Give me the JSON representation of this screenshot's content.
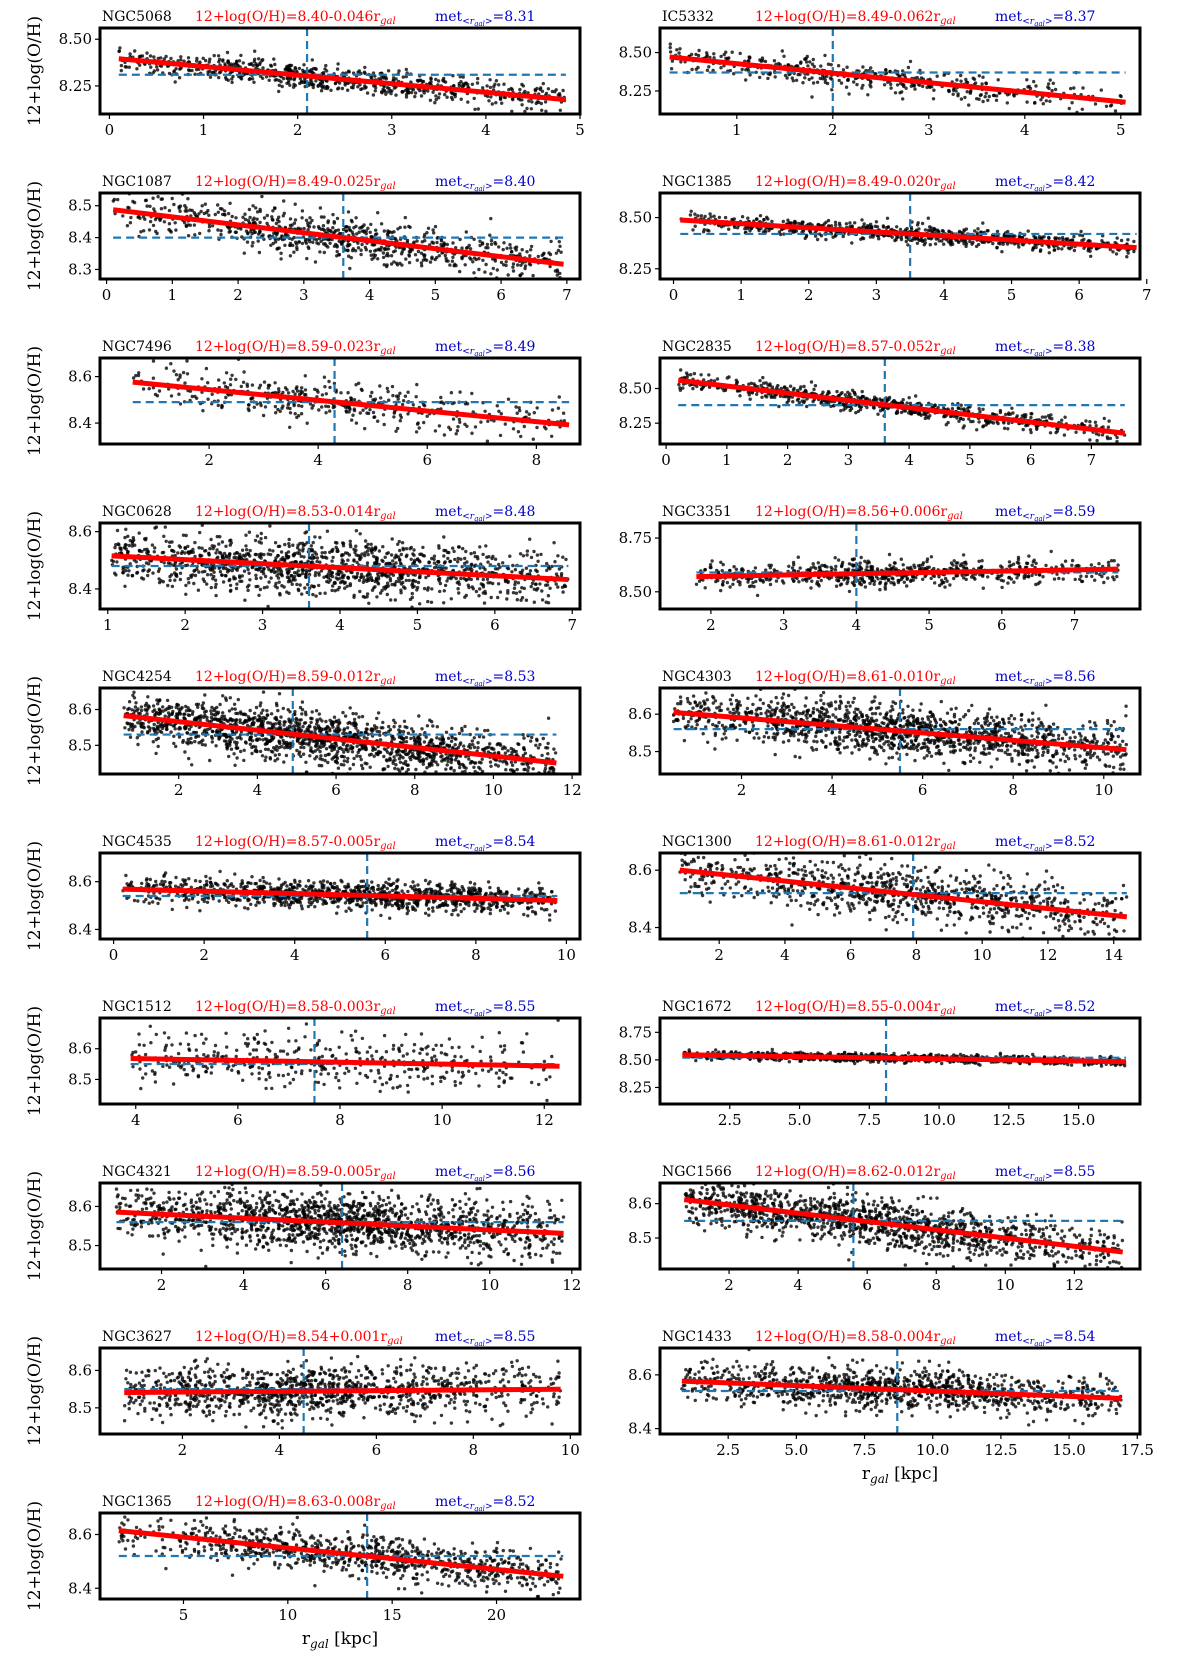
{
  "figure": {
    "ylabel": "12+log(O/H)",
    "xlabel_prefix": "r",
    "xlabel_sub": "gal",
    "xlabel_suffix": " [kpc]",
    "colors": {
      "points": "#000000",
      "fit": "#ff0000",
      "median": "#1f77b4",
      "fit_label": "#ff0000",
      "met_label": "#0000cc",
      "frame": "#000000"
    }
  },
  "chart_data": [
    {
      "type": "scatter",
      "name": "NGC5068",
      "fit_text": "12+log(O/H)=8.40-0.046r",
      "met_value": "=8.31",
      "intercept": 8.4,
      "slope": -0.046,
      "met": 8.31,
      "r_med": 2.1,
      "xlim": [
        -0.1,
        5.0
      ],
      "ylim": [
        8.1,
        8.56
      ],
      "xticks": [
        0,
        1,
        2,
        3,
        4,
        5
      ],
      "yticks": [
        8.25,
        8.5
      ],
      "ytick_labels": [
        "8.25",
        "8.50"
      ],
      "x_range": [
        0.1,
        4.85
      ],
      "n_points": 750,
      "scatter": 0.035,
      "show_xlabel": false,
      "show_ylabel": true
    },
    {
      "type": "scatter",
      "name": "IC5332",
      "fit_text": "12+log(O/H)=8.49-0.062r",
      "met_value": "=8.37",
      "intercept": 8.49,
      "slope": -0.062,
      "met": 8.37,
      "r_med": 2.0,
      "xlim": [
        0.2,
        5.2
      ],
      "ylim": [
        8.1,
        8.66
      ],
      "xticks": [
        1,
        2,
        3,
        4,
        5
      ],
      "yticks": [
        8.25,
        8.5
      ],
      "ytick_labels": [
        "8.25",
        "8.50"
      ],
      "x_range": [
        0.3,
        5.05
      ],
      "n_points": 450,
      "scatter": 0.045,
      "show_xlabel": false,
      "show_ylabel": false
    },
    {
      "type": "scatter",
      "name": "NGC1087",
      "fit_text": "12+log(O/H)=8.49-0.025r",
      "met_value": "=8.40",
      "intercept": 8.49,
      "slope": -0.025,
      "met": 8.4,
      "r_med": 3.6,
      "xlim": [
        -0.1,
        7.2
      ],
      "ylim": [
        8.27,
        8.54
      ],
      "xticks": [
        0,
        1,
        2,
        3,
        4,
        5,
        6,
        7
      ],
      "yticks": [
        8.3,
        8.4,
        8.5
      ],
      "ytick_labels": [
        "8.3",
        "8.4",
        "8.5"
      ],
      "x_range": [
        0.1,
        6.95
      ],
      "n_points": 800,
      "scatter": 0.035,
      "show_xlabel": false,
      "show_ylabel": true
    },
    {
      "type": "scatter",
      "name": "NGC1385",
      "fit_text": "12+log(O/H)=8.49-0.020r",
      "met_value": "=8.42",
      "intercept": 8.49,
      "slope": -0.02,
      "met": 8.42,
      "r_med": 3.5,
      "xlim": [
        -0.2,
        6.9
      ],
      "ylim": [
        8.2,
        8.62
      ],
      "xticks": [
        0,
        1,
        2,
        3,
        4,
        5,
        6,
        7
      ],
      "yticks": [
        8.25,
        8.5
      ],
      "ytick_labels": [
        "8.25",
        "8.50"
      ],
      "x_range": [
        0.1,
        6.85
      ],
      "n_points": 800,
      "scatter": 0.022,
      "show_xlabel": false,
      "show_ylabel": false
    },
    {
      "type": "scatter",
      "name": "NGC7496",
      "fit_text": "12+log(O/H)=8.59-0.023r",
      "met_value": "=8.49",
      "intercept": 8.59,
      "slope": -0.023,
      "met": 8.49,
      "r_med": 4.3,
      "xlim": [
        0.0,
        8.8
      ],
      "ylim": [
        8.31,
        8.68
      ],
      "xticks": [
        2,
        4,
        6,
        8
      ],
      "yticks": [
        8.4,
        8.6
      ],
      "ytick_labels": [
        "8.4",
        "8.6"
      ],
      "x_range": [
        0.6,
        8.6
      ],
      "n_points": 420,
      "scatter": 0.045,
      "show_xlabel": false,
      "show_ylabel": true
    },
    {
      "type": "scatter",
      "name": "NGC2835",
      "fit_text": "12+log(O/H)=8.57-0.052r",
      "met_value": "=8.38",
      "intercept": 8.57,
      "slope": -0.052,
      "met": 8.38,
      "r_med": 3.6,
      "xlim": [
        -0.1,
        7.8
      ],
      "ylim": [
        8.1,
        8.72
      ],
      "xticks": [
        0,
        1,
        2,
        3,
        4,
        5,
        6,
        7
      ],
      "yticks": [
        8.25,
        8.5
      ],
      "ytick_labels": [
        "8.25",
        "8.50"
      ],
      "x_range": [
        0.2,
        7.55
      ],
      "n_points": 700,
      "scatter": 0.035,
      "show_xlabel": false,
      "show_ylabel": false
    },
    {
      "type": "scatter",
      "name": "NGC0628",
      "fit_text": "12+log(O/H)=8.53-0.014r",
      "met_value": "=8.48",
      "intercept": 8.53,
      "slope": -0.014,
      "met": 8.48,
      "r_med": 3.6,
      "xlim": [
        0.9,
        7.1
      ],
      "ylim": [
        8.33,
        8.63
      ],
      "xticks": [
        1,
        2,
        3,
        4,
        5,
        6,
        7
      ],
      "yticks": [
        8.4,
        8.6
      ],
      "ytick_labels": [
        "8.4",
        "8.6"
      ],
      "x_range": [
        1.05,
        6.95
      ],
      "n_points": 1300,
      "scatter": 0.05,
      "show_xlabel": false,
      "show_ylabel": true
    },
    {
      "type": "scatter",
      "name": "NGC3351",
      "fit_text": "12+log(O/H)=8.56+0.006r",
      "met_value": "=8.59",
      "intercept": 8.56,
      "slope": 0.006,
      "met": 8.59,
      "r_med": 4.0,
      "xlim": [
        1.3,
        7.9
      ],
      "ylim": [
        8.42,
        8.82
      ],
      "xticks": [
        2,
        3,
        4,
        5,
        6,
        7
      ],
      "yticks": [
        8.5,
        8.75
      ],
      "ytick_labels": [
        "8.50",
        "8.75"
      ],
      "x_range": [
        1.8,
        7.6
      ],
      "n_points": 650,
      "scatter": 0.03,
      "show_xlabel": false,
      "show_ylabel": false
    },
    {
      "type": "scatter",
      "name": "NGC4254",
      "fit_text": "12+log(O/H)=8.59-0.012r",
      "met_value": "=8.53",
      "intercept": 8.59,
      "slope": -0.012,
      "met": 8.53,
      "r_med": 4.9,
      "xlim": [
        0.0,
        12.2
      ],
      "ylim": [
        8.42,
        8.66
      ],
      "xticks": [
        2,
        4,
        6,
        8,
        10,
        12
      ],
      "yticks": [
        8.5,
        8.6
      ],
      "ytick_labels": [
        "8.5",
        "8.6"
      ],
      "x_range": [
        0.6,
        11.6
      ],
      "n_points": 1600,
      "scatter": 0.035,
      "show_xlabel": false,
      "show_ylabel": true
    },
    {
      "type": "scatter",
      "name": "NGC4303",
      "fit_text": "12+log(O/H)=8.61-0.010r",
      "met_value": "=8.56",
      "intercept": 8.61,
      "slope": -0.01,
      "met": 8.56,
      "r_med": 5.5,
      "xlim": [
        0.2,
        10.8
      ],
      "ylim": [
        8.44,
        8.67
      ],
      "xticks": [
        2,
        4,
        6,
        8,
        10
      ],
      "yticks": [
        8.5,
        8.6
      ],
      "ytick_labels": [
        "8.5",
        "8.6"
      ],
      "x_range": [
        0.5,
        10.5
      ],
      "n_points": 1400,
      "scatter": 0.035,
      "show_xlabel": false,
      "show_ylabel": false
    },
    {
      "type": "scatter",
      "name": "NGC4535",
      "fit_text": "12+log(O/H)=8.57-0.005r",
      "met_value": "=8.54",
      "intercept": 8.57,
      "slope": -0.005,
      "met": 8.54,
      "r_med": 5.6,
      "xlim": [
        -0.3,
        10.3
      ],
      "ylim": [
        8.36,
        8.72
      ],
      "xticks": [
        0,
        2,
        4,
        6,
        8,
        10
      ],
      "yticks": [
        8.4,
        8.6
      ],
      "ytick_labels": [
        "8.4",
        "8.6"
      ],
      "x_range": [
        0.2,
        9.8
      ],
      "n_points": 1100,
      "scatter": 0.03,
      "show_xlabel": false,
      "show_ylabel": true
    },
    {
      "type": "scatter",
      "name": "NGC1300",
      "fit_text": "12+log(O/H)=8.61-0.012r",
      "met_value": "=8.52",
      "intercept": 8.61,
      "slope": -0.012,
      "met": 8.52,
      "r_med": 7.9,
      "xlim": [
        0.2,
        14.8
      ],
      "ylim": [
        8.36,
        8.66
      ],
      "xticks": [
        2,
        4,
        6,
        8,
        10,
        12,
        14
      ],
      "yticks": [
        8.4,
        8.6
      ],
      "ytick_labels": [
        "8.4",
        "8.6"
      ],
      "x_range": [
        0.8,
        14.4
      ],
      "n_points": 900,
      "scatter": 0.045,
      "show_xlabel": false,
      "show_ylabel": false
    },
    {
      "type": "scatter",
      "name": "NGC1512",
      "fit_text": "12+log(O/H)=8.58-0.003r",
      "met_value": "=8.55",
      "intercept": 8.58,
      "slope": -0.003,
      "met": 8.55,
      "r_med": 7.5,
      "xlim": [
        3.3,
        12.7
      ],
      "ylim": [
        8.42,
        8.7
      ],
      "xticks": [
        4,
        6,
        8,
        10,
        12
      ],
      "yticks": [
        8.5,
        8.6
      ],
      "ytick_labels": [
        "8.5",
        "8.6"
      ],
      "x_range": [
        3.9,
        12.3
      ],
      "n_points": 420,
      "scatter": 0.045,
      "show_xlabel": false,
      "show_ylabel": true
    },
    {
      "type": "scatter",
      "name": "NGC1672",
      "fit_text": "12+log(O/H)=8.55-0.004r",
      "met_value": "=8.52",
      "intercept": 8.55,
      "slope": -0.004,
      "met": 8.52,
      "r_med": 8.1,
      "xlim": [
        0.0,
        17.2
      ],
      "ylim": [
        8.1,
        8.88
      ],
      "xticks": [
        2.5,
        5.0,
        7.5,
        10.0,
        12.5,
        15.0
      ],
      "yticks": [
        8.25,
        8.5,
        8.75
      ],
      "ytick_labels": [
        "8.25",
        "8.50",
        "8.75"
      ],
      "x_range": [
        0.8,
        16.7
      ],
      "n_points": 1000,
      "scatter": 0.018,
      "show_xlabel": false,
      "show_ylabel": false
    },
    {
      "type": "scatter",
      "name": "NGC4321",
      "fit_text": "12+log(O/H)=8.59-0.005r",
      "met_value": "=8.56",
      "intercept": 8.59,
      "slope": -0.005,
      "met": 8.56,
      "r_med": 6.4,
      "xlim": [
        0.5,
        12.2
      ],
      "ylim": [
        8.44,
        8.66
      ],
      "xticks": [
        2,
        4,
        6,
        8,
        10,
        12
      ],
      "yticks": [
        8.5,
        8.6
      ],
      "ytick_labels": [
        "8.5",
        "8.6"
      ],
      "x_range": [
        0.9,
        11.8
      ],
      "n_points": 1500,
      "scatter": 0.035,
      "show_xlabel": false,
      "show_ylabel": true
    },
    {
      "type": "scatter",
      "name": "NGC1566",
      "fit_text": "12+log(O/H)=8.62-0.012r",
      "met_value": "=8.55",
      "intercept": 8.62,
      "slope": -0.012,
      "met": 8.55,
      "r_med": 5.6,
      "xlim": [
        0.0,
        13.9
      ],
      "ylim": [
        8.41,
        8.66
      ],
      "xticks": [
        2,
        4,
        6,
        8,
        10,
        12
      ],
      "yticks": [
        8.5,
        8.6
      ],
      "ytick_labels": [
        "8.5",
        "8.6"
      ],
      "x_range": [
        0.7,
        13.4
      ],
      "n_points": 1300,
      "scatter": 0.035,
      "show_xlabel": false,
      "show_ylabel": false
    },
    {
      "type": "scatter",
      "name": "NGC3627",
      "fit_text": "12+log(O/H)=8.54+0.001r",
      "met_value": "=8.55",
      "intercept": 8.54,
      "slope": 0.001,
      "met": 8.55,
      "r_med": 4.5,
      "xlim": [
        0.3,
        10.2
      ],
      "ylim": [
        8.43,
        8.66
      ],
      "xticks": [
        2,
        4,
        6,
        8,
        10
      ],
      "yticks": [
        8.5,
        8.6
      ],
      "ytick_labels": [
        "8.5",
        "8.6"
      ],
      "x_range": [
        0.8,
        9.8
      ],
      "n_points": 1100,
      "scatter": 0.035,
      "show_xlabel": false,
      "show_ylabel": true
    },
    {
      "type": "scatter",
      "name": "NGC1433",
      "fit_text": "12+log(O/H)=8.58-0.004r",
      "met_value": "=8.54",
      "intercept": 8.58,
      "slope": -0.004,
      "met": 8.54,
      "r_med": 8.7,
      "xlim": [
        0.0,
        17.6
      ],
      "ylim": [
        8.38,
        8.7
      ],
      "xticks": [
        2.5,
        5.0,
        7.5,
        10.0,
        12.5,
        15.0,
        17.5
      ],
      "yticks": [
        8.4,
        8.6
      ],
      "ytick_labels": [
        "8.4",
        "8.6"
      ],
      "x_range": [
        0.8,
        16.9
      ],
      "n_points": 1100,
      "scatter": 0.04,
      "show_xlabel": true,
      "show_ylabel": false
    },
    {
      "type": "scatter",
      "name": "NGC1365",
      "fit_text": "12+log(O/H)=8.63-0.008r",
      "met_value": "=8.52",
      "intercept": 8.63,
      "slope": -0.008,
      "met": 8.52,
      "r_med": 13.8,
      "xlim": [
        1.0,
        24.0
      ],
      "ylim": [
        8.36,
        8.68
      ],
      "xticks": [
        5,
        10,
        15,
        20
      ],
      "yticks": [
        8.4,
        8.6
      ],
      "ytick_labels": [
        "8.4",
        "8.6"
      ],
      "x_range": [
        1.9,
        23.2
      ],
      "n_points": 850,
      "scatter": 0.04,
      "show_xlabel": true,
      "show_ylabel": true
    }
  ]
}
